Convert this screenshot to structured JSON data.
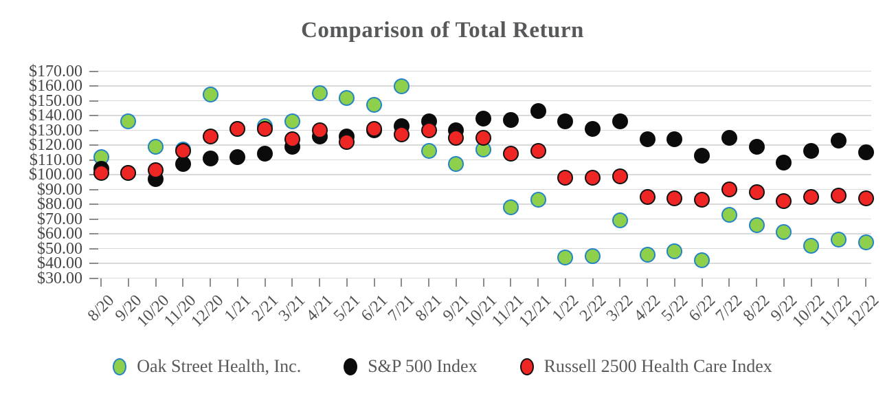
{
  "chart_data": {
    "type": "scatter",
    "title": "Comparison of Total Return",
    "xlabel": "",
    "ylabel": "",
    "ylim": [
      30,
      170
    ],
    "grid": "horizontal",
    "legend_position": "bottom",
    "y_ticks": [
      {
        "value": 170,
        "label": "$170.00"
      },
      {
        "value": 160,
        "label": "$160.00"
      },
      {
        "value": 150,
        "label": "$150.00"
      },
      {
        "value": 140,
        "label": "$140.00"
      },
      {
        "value": 130,
        "label": "$130.00"
      },
      {
        "value": 120,
        "label": "$120.00"
      },
      {
        "value": 110,
        "label": "$110.00"
      },
      {
        "value": 100,
        "label": "$100.00"
      },
      {
        "value": 90,
        "label": "$90.00"
      },
      {
        "value": 80,
        "label": "$80.00"
      },
      {
        "value": 70,
        "label": "$70.00"
      },
      {
        "value": 60,
        "label": "$60.00"
      },
      {
        "value": 50,
        "label": "$50.00"
      },
      {
        "value": 40,
        "label": "$40.00"
      },
      {
        "value": 30,
        "label": "$30.00"
      }
    ],
    "categories": [
      "8/20",
      "9/20",
      "10/20",
      "11/20",
      "12/20",
      "1/21",
      "2/21",
      "3/21",
      "4/21",
      "5/21",
      "6/21",
      "7/21",
      "8/21",
      "9/21",
      "10/21",
      "11/21",
      "12/21",
      "1/22",
      "2/22",
      "3/22",
      "4/22",
      "5/22",
      "6/22",
      "7/22",
      "8/22",
      "9/22",
      "10/22",
      "11/22",
      "12/22"
    ],
    "series": [
      {
        "name": "Oak Street Health, Inc.",
        "marker_fill": "#8ed04c",
        "marker_border": "#2283c5",
        "values": [
          112,
          136,
          119,
          117,
          154,
          131,
          133,
          136,
          155,
          152,
          147,
          160,
          116,
          107,
          117,
          78,
          83,
          44,
          45,
          69,
          46,
          48,
          42,
          73,
          66,
          61,
          52,
          56,
          54
        ]
      },
      {
        "name": "S&P 500 Index",
        "marker_fill": "#0b0b0b",
        "marker_border": "#0b0b0b",
        "values": [
          104,
          101,
          97,
          107,
          111,
          112,
          114,
          119,
          126,
          126,
          130,
          133,
          136,
          130,
          138,
          137,
          143,
          136,
          131,
          136,
          124,
          124,
          113,
          125,
          119,
          108,
          116,
          123,
          115
        ]
      },
      {
        "name": "Russell 2500 Health Care Index",
        "marker_fill": "#ee2624",
        "marker_border": "#111111",
        "values": [
          101,
          101,
          103,
          116,
          126,
          131,
          131,
          124,
          130,
          122,
          131,
          127,
          130,
          125,
          125,
          114,
          116,
          98,
          98,
          99,
          85,
          84,
          83,
          90,
          88,
          82,
          85,
          86,
          84
        ]
      }
    ]
  }
}
